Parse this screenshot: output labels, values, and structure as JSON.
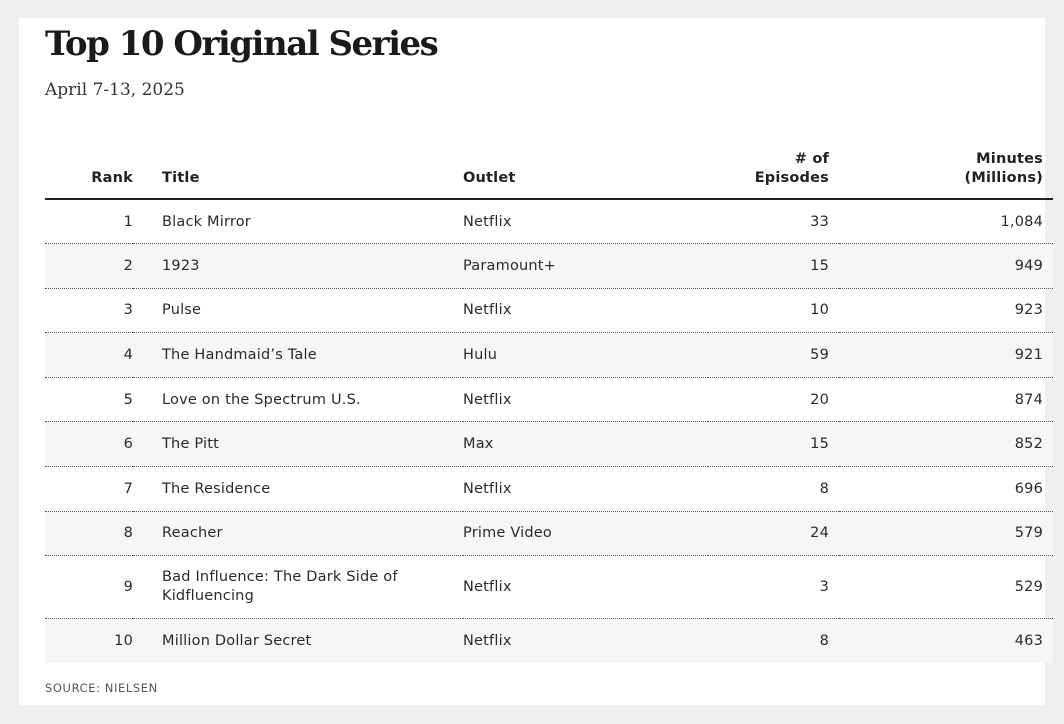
{
  "title": "Top 10 Original Series",
  "subtitle": "April 7-13, 2025",
  "source": "SOURCE: NIELSEN",
  "columns": {
    "rank": "Rank",
    "title": "Title",
    "outlet": "Outlet",
    "episodes_line1": "# of",
    "episodes_line2": "Episodes",
    "minutes_line1": "Minutes",
    "minutes_line2": "(Millions)"
  },
  "rows": [
    {
      "rank": "1",
      "title": "Black Mirror",
      "outlet": "Netflix",
      "episodes": "33",
      "minutes": "1,084"
    },
    {
      "rank": "2",
      "title": "1923",
      "outlet": "Paramount+",
      "episodes": "15",
      "minutes": "949"
    },
    {
      "rank": "3",
      "title": "Pulse",
      "outlet": "Netflix",
      "episodes": "10",
      "minutes": "923"
    },
    {
      "rank": "4",
      "title": "The Handmaid’s Tale",
      "outlet": "Hulu",
      "episodes": "59",
      "minutes": "921"
    },
    {
      "rank": "5",
      "title": "Love on the Spectrum U.S.",
      "outlet": "Netflix",
      "episodes": "20",
      "minutes": "874"
    },
    {
      "rank": "6",
      "title": "The Pitt",
      "outlet": "Max",
      "episodes": "15",
      "minutes": "852"
    },
    {
      "rank": "7",
      "title": "The Residence",
      "outlet": "Netflix",
      "episodes": "8",
      "minutes": "696"
    },
    {
      "rank": "8",
      "title": "Reacher",
      "outlet": "Prime Video",
      "episodes": "24",
      "minutes": "579"
    },
    {
      "rank": "9",
      "title_line1": "Bad Influence: The Dark Side of",
      "title_line2": "Kidfluencing",
      "outlet": "Netflix",
      "episodes": "3",
      "minutes": "529"
    },
    {
      "rank": "10",
      "title": "Million Dollar Secret",
      "outlet": "Netflix",
      "episodes": "8",
      "minutes": "463"
    }
  ],
  "chart_data": {
    "type": "table",
    "title": "Top 10 Original Series",
    "subtitle": "April 7-13, 2025",
    "columns": [
      "Rank",
      "Title",
      "Outlet",
      "# of Episodes",
      "Minutes (Millions)"
    ],
    "rows": [
      [
        1,
        "Black Mirror",
        "Netflix",
        33,
        1084
      ],
      [
        2,
        "1923",
        "Paramount+",
        15,
        949
      ],
      [
        3,
        "Pulse",
        "Netflix",
        10,
        923
      ],
      [
        4,
        "The Handmaid’s Tale",
        "Hulu",
        59,
        921
      ],
      [
        5,
        "Love on the Spectrum U.S.",
        "Netflix",
        20,
        874
      ],
      [
        6,
        "The Pitt",
        "Max",
        15,
        852
      ],
      [
        7,
        "The Residence",
        "Netflix",
        8,
        696
      ],
      [
        8,
        "Reacher",
        "Prime Video",
        24,
        579
      ],
      [
        9,
        "Bad Influence: The Dark Side of Kidfluencing",
        "Netflix",
        3,
        529
      ],
      [
        10,
        "Million Dollar Secret",
        "Netflix",
        8,
        463
      ]
    ],
    "source": "SOURCE: NIELSEN"
  }
}
